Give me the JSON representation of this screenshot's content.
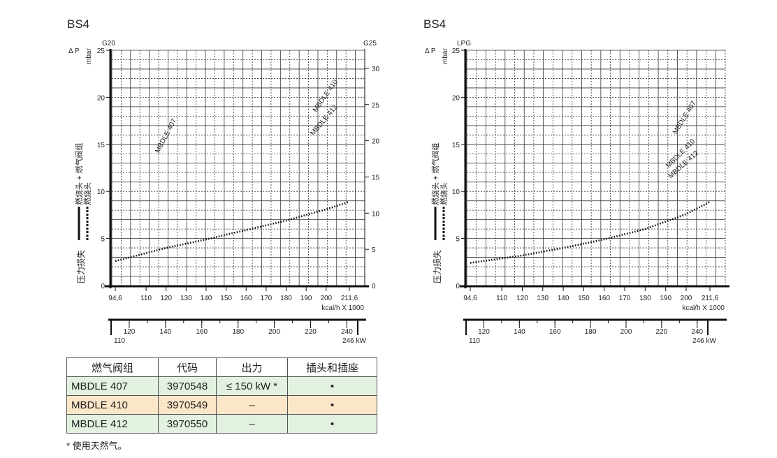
{
  "charts": [
    {
      "title": "BS4",
      "gas_left": "G20",
      "gas_right": "G25",
      "dp_label": "Δ P",
      "unit_label": "mbar",
      "ylabel_main": "压力损失",
      "legend_solid": "燃烧头 + 燃气阀组",
      "legend_dotted": "燃烧头",
      "kcal_label": "kcal/h X 1000",
      "kw_unit": "kW",
      "annotations": [
        "MBDLE 407",
        "MBDLE 410",
        "MBDLE 412"
      ]
    },
    {
      "title": "BS4",
      "gas_left": "LPG",
      "dp_label": "Δ P",
      "unit_label": "mbar",
      "ylabel_main": "压力损失",
      "legend_solid": "燃烧头 + 燃气阀组",
      "legend_dotted": "燃烧头",
      "kcal_label": "kcal/h X 1000",
      "kw_unit": "kW",
      "annotations": [
        "MBDLE 407",
        "MBDLE 410",
        "MBDLE 412"
      ]
    }
  ],
  "chart_data": [
    {
      "type": "line",
      "title": "BS4",
      "x_kcal_ticks": [
        "94,6",
        "110",
        "120",
        "130",
        "140",
        "150",
        "160",
        "170",
        "180",
        "190",
        "200",
        "211,6"
      ],
      "x_kw_ticks": [
        "110",
        "120",
        "140",
        "160",
        "180",
        "200",
        "220",
        "240",
        "246"
      ],
      "y_left_ticks": [
        "0",
        "5",
        "10",
        "15",
        "20",
        "25"
      ],
      "y_right_ticks": [
        "0",
        "5",
        "10",
        "15",
        "20",
        "25",
        "30"
      ],
      "xlim_kcal": [
        94.6,
        211.6
      ],
      "ylim": [
        0,
        25
      ],
      "ylim_right": [
        0,
        32.5
      ],
      "grid": true,
      "series": [
        {
          "style": "dotted",
          "x": [
            94.6,
            120,
            140,
            160,
            180,
            200,
            211.6
          ],
          "y": [
            2.6,
            4.0,
            4.9,
            5.9,
            6.9,
            8.1,
            8.9
          ]
        }
      ]
    },
    {
      "type": "line",
      "title": "BS4",
      "x_kcal_ticks": [
        "94,6",
        "110",
        "120",
        "130",
        "140",
        "150",
        "160",
        "170",
        "180",
        "190",
        "200",
        "211,6"
      ],
      "x_kw_ticks": [
        "110",
        "120",
        "140",
        "160",
        "180",
        "200",
        "220",
        "240",
        "246"
      ],
      "y_left_ticks": [
        "0",
        "5",
        "10",
        "15",
        "20",
        "25"
      ],
      "xlim_kcal": [
        94.6,
        211.6
      ],
      "ylim": [
        0,
        25
      ],
      "grid": true,
      "series": [
        {
          "style": "dotted",
          "x": [
            94.6,
            120,
            140,
            160,
            180,
            200,
            211.6
          ],
          "y": [
            2.4,
            3.2,
            4.0,
            4.9,
            6.0,
            7.6,
            8.9
          ]
        }
      ]
    }
  ],
  "table": {
    "headers": [
      "燃气阀组",
      "代码",
      "出力",
      "插头和插座"
    ],
    "rows": [
      {
        "model": "MBDLE 407",
        "code": "3970548",
        "output": "≤ 150 kW *",
        "plug": "•",
        "bg": "#e3f1e1"
      },
      {
        "model": "MBDLE 410",
        "code": "3970549",
        "output": "–",
        "plug": "•",
        "bg": "#fbe6c8"
      },
      {
        "model": "MBDLE 412",
        "code": "3970550",
        "output": "–",
        "plug": "•",
        "bg": "#e3f1e1"
      }
    ]
  },
  "footnote": "* 使用天然气。"
}
